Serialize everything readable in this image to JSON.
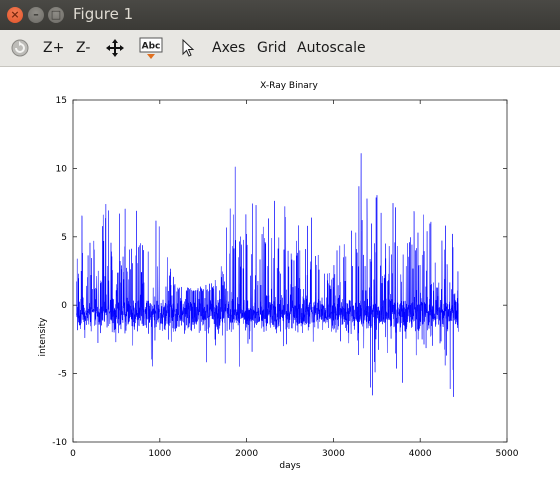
{
  "window": {
    "title": "Figure 1",
    "close_glyph": "×",
    "minimize_glyph": "–",
    "maximize_glyph": "□"
  },
  "toolbar": {
    "zoom_in_label": "Z+",
    "zoom_out_label": "Z-",
    "axes_label": "Axes",
    "grid_label": "Grid",
    "autoscale_label": "Autoscale",
    "insert_text_icon_text": "Abc",
    "icons": [
      "rotate-icon",
      "pan-icon",
      "insert-text-icon",
      "select-pointer-icon"
    ]
  },
  "chart_data": {
    "type": "line",
    "title": "X-Ray Binary",
    "xlabel": "days",
    "ylabel": "intensity",
    "xlim": [
      0,
      5000
    ],
    "ylim": [
      -10,
      15
    ],
    "xticks": [
      0,
      1000,
      2000,
      3000,
      4000,
      5000
    ],
    "yticks": [
      -10,
      -5,
      0,
      5,
      10,
      15
    ],
    "grid": false,
    "line_color": "#0000ff",
    "x_range_of_data": [
      40,
      4440
    ],
    "series": [
      {
        "envelope_x": [
          40,
          200,
          400,
          600,
          800,
          1000,
          1100,
          1200,
          1400,
          1600,
          1700,
          1800,
          1850,
          1900,
          2000,
          2200,
          2400,
          2600,
          2800,
          2900,
          3000,
          3100,
          3200,
          3250,
          3400,
          3500,
          3600,
          3800,
          4000,
          4200,
          4400,
          4440
        ],
        "upper": [
          6.8,
          7.5,
          7.5,
          7.3,
          7.0,
          6.8,
          5.5,
          1.5,
          1.2,
          1.8,
          3.5,
          7.0,
          12.4,
          8.0,
          9.3,
          7.5,
          7.8,
          7.5,
          6.8,
          3.5,
          3.0,
          6.5,
          7.8,
          13.2,
          8.8,
          8.5,
          7.7,
          7.2,
          7.0,
          6.5,
          6.6,
          6.9
        ],
        "lower": [
          -2.8,
          -3.3,
          -2.8,
          -3.2,
          -3.3,
          -6.7,
          -3.5,
          -1.8,
          -2.5,
          -4.9,
          -4.3,
          -6.5,
          -7.0,
          -6.6,
          -3.8,
          -3.0,
          -3.4,
          -3.0,
          -2.8,
          -2.5,
          -1.9,
          -2.8,
          -3.5,
          -3.0,
          -8.0,
          -5.5,
          -3.2,
          -6.1,
          -3.3,
          -3.2,
          -7.3,
          -5.0
        ]
      }
    ]
  }
}
